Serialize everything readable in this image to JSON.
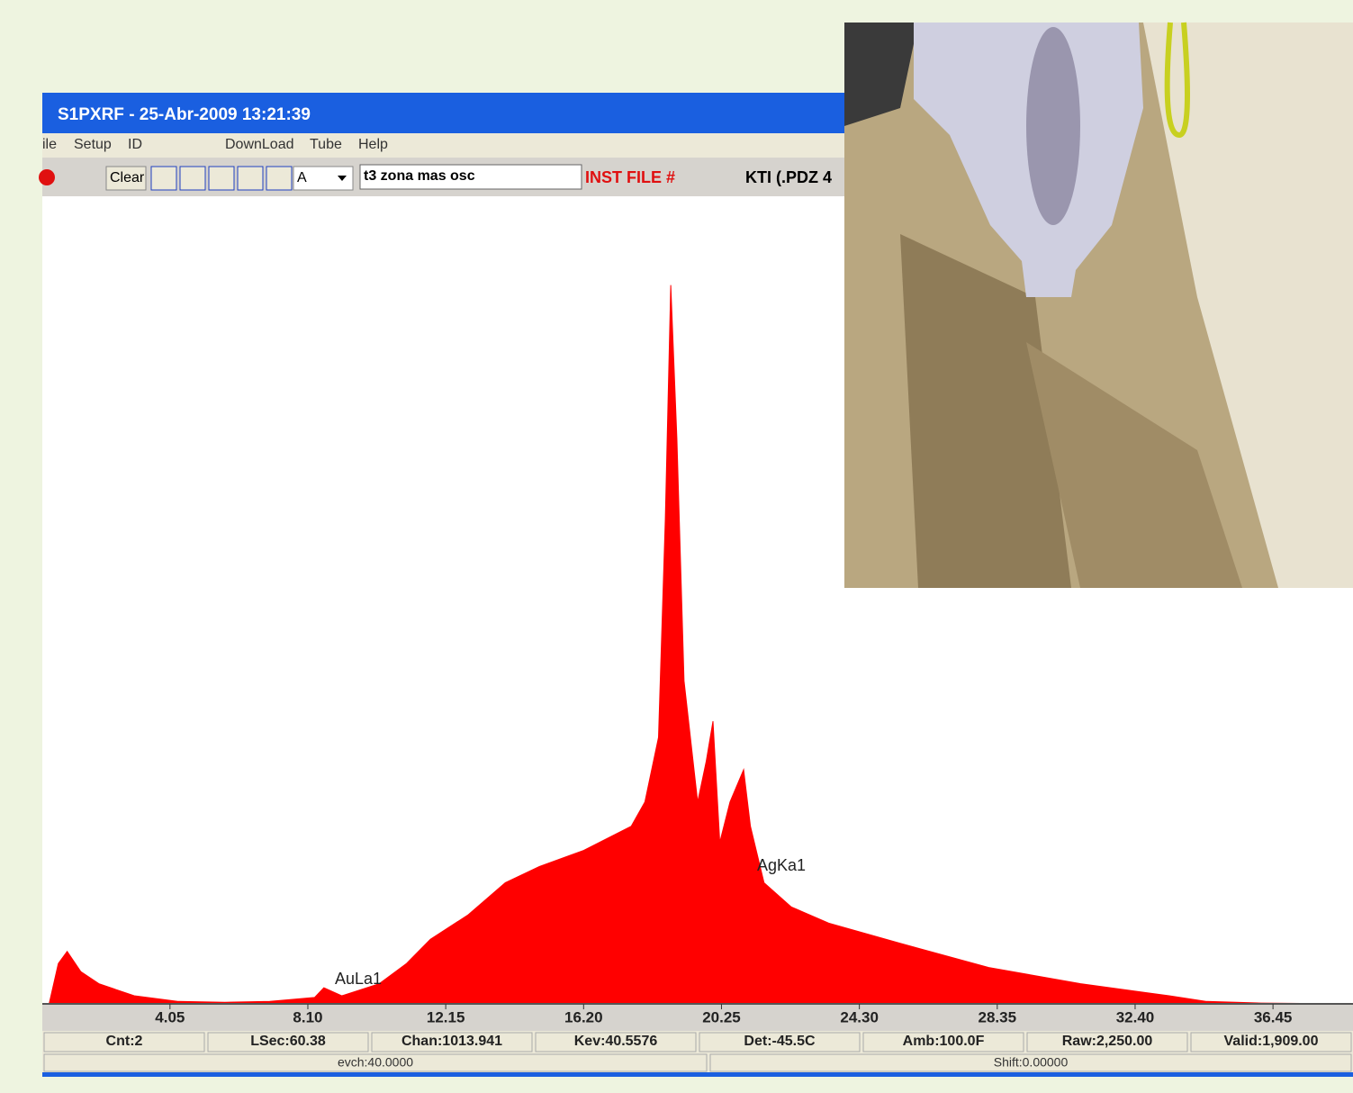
{
  "window": {
    "title": "S1PXRF - 25-Abr-2009 13:21:39",
    "menu": [
      "ile",
      "Setup",
      "ID",
      "DownLoad",
      "Tube",
      "Help"
    ],
    "toolbar": {
      "button": "Clear",
      "dropdown": "A",
      "sample_name": "t3 zona mas osc",
      "inst_file": "INST FILE #",
      "kti": "KTI  (.PDZ 4"
    },
    "status": [
      "Cnt:2",
      "LSec:60.38",
      "Chan:1013.941",
      "Kev:40.5576",
      "Det:-45.5C",
      "Amb:100.0F",
      "Raw:2,250.00",
      "Valid:1,909.00"
    ],
    "status2": [
      "evch:40.0000",
      "Shift:0.00000"
    ]
  },
  "chart_data": {
    "type": "area",
    "color": "#ff0000",
    "x": [
      0.5,
      0.77,
      1.03,
      1.43,
      1.96,
      3.0,
      4.3,
      5.66,
      6.98,
      8.3,
      8.57,
      9.1,
      10.2,
      11.0,
      11.7,
      12.8,
      13.9,
      14.9,
      16.2,
      17.6,
      18.0,
      18.4,
      18.6,
      18.76,
      18.94,
      19.15,
      19.55,
      19.8,
      20.0,
      20.2,
      20.5,
      20.9,
      21.1,
      21.5,
      22.3,
      23.4,
      25.5,
      28.1,
      30.8,
      33.4,
      34.5,
      36.1,
      38.8
    ],
    "values": [
      0,
      5,
      6.5,
      4,
      2.5,
      1,
      0.3,
      0.2,
      0.3,
      0.8,
      2,
      1,
      2.5,
      5,
      8,
      11,
      15,
      17,
      19,
      22,
      25,
      33,
      60,
      89,
      70,
      40,
      25,
      30,
      35,
      20,
      25,
      29,
      22,
      15,
      12,
      10,
      7.5,
      4.5,
      2.5,
      1,
      0.3,
      0.1,
      0
    ],
    "xlim": [
      0.3,
      38.8
    ],
    "ylim": [
      0,
      100
    ],
    "xticks": [
      4.05,
      {
        "value": 8.1,
        "label": "8.10"
      },
      12.15,
      {
        "value": 16.2,
        "label": "16.20"
      },
      20.25,
      {
        "value": 24.3,
        "label": "24.30"
      },
      28.35,
      {
        "value": 32.4,
        "label": "32.40"
      },
      36.45
    ],
    "annotations": [
      "AuLa1",
      "AgKa1"
    ]
  }
}
